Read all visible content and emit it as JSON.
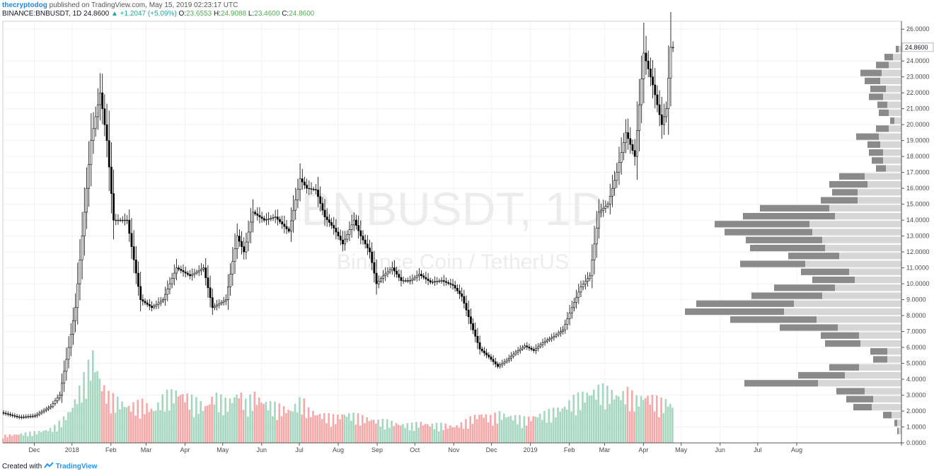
{
  "header": {
    "author": "thecryptodog",
    "published_text": "published on TradingView.com, May 15, 2019 02:23:17 UTC",
    "symbol": "BINANCE:BNBUSDT, 1D",
    "last": "24.8600",
    "change": "▲ +1.2047 (+5.09%)",
    "o_label": "O:",
    "o_value": "23.6553",
    "h_label": "H:",
    "h_value": "24.9088",
    "l_label": "L:",
    "l_value": "23.4600",
    "c_label": "C:",
    "c_value": "24.8600"
  },
  "watermark": {
    "line1": "BNBUSDT, 1D",
    "line2": "Binance Coin / TetherUS"
  },
  "footer": {
    "created_with": "Created with",
    "brand": "TradingView"
  },
  "colors": {
    "up": "#26a69a",
    "down": "#ef5350",
    "candle": "#000000",
    "vol_up": "#a5d6c0",
    "vol_down": "#f4a9a8",
    "vp_dark": "#8a8a8a",
    "vp_light": "#d6d6d6"
  },
  "chart_data": {
    "type": "candlestick",
    "price_axis": {
      "ticks": [
        "26.0000",
        "24.0000",
        "23.0000",
        "22.0000",
        "21.0000",
        "20.0000",
        "19.0000",
        "18.0000",
        "17.0000",
        "16.0000",
        "15.0000",
        "14.0000",
        "13.0000",
        "12.0000",
        "11.0000",
        "10.0000",
        "9.0000",
        "8.0000",
        "7.0000",
        "6.0000",
        "5.0000",
        "4.0000",
        "3.0000",
        "2.0000",
        "1.0000",
        "0.0000"
      ],
      "tick_values": [
        26,
        24,
        23,
        22,
        21,
        20,
        19,
        18,
        17,
        16,
        15,
        14,
        13,
        12,
        11,
        10,
        9,
        8,
        7,
        6,
        5,
        4,
        3,
        2,
        1,
        0
      ],
      "ylim": [
        0,
        26.5
      ],
      "last_price_label": "24.8600",
      "last_price": 24.86
    },
    "time_axis": {
      "labels": [
        "Dec",
        "2018",
        "Feb",
        "Mar",
        "Apr",
        "May",
        "Jun",
        "Jul",
        "Aug",
        "Sep",
        "Oct",
        "Nov",
        "Dec",
        "2019",
        "Feb",
        "Mar",
        "Apr",
        "May",
        "Jun",
        "Jul",
        "Aug"
      ]
    },
    "price_series": [
      [
        0,
        1.9
      ],
      [
        8,
        1.6
      ],
      [
        15,
        1.7
      ],
      [
        22,
        2.3
      ],
      [
        26,
        3.0
      ],
      [
        30,
        6.0
      ],
      [
        33,
        8.5
      ],
      [
        36,
        13
      ],
      [
        40,
        19
      ],
      [
        44,
        22
      ],
      [
        47,
        19
      ],
      [
        50,
        14
      ],
      [
        56,
        14
      ],
      [
        62,
        9
      ],
      [
        67,
        8.5
      ],
      [
        72,
        9
      ],
      [
        78,
        11
      ],
      [
        84,
        10.5
      ],
      [
        90,
        11
      ],
      [
        94,
        8.5
      ],
      [
        100,
        9
      ],
      [
        105,
        13
      ],
      [
        108,
        12
      ],
      [
        112,
        14.5
      ],
      [
        117,
        14
      ],
      [
        122,
        14.2
      ],
      [
        128,
        13.3
      ],
      [
        133,
        16.6
      ],
      [
        136,
        16
      ],
      [
        140,
        15.9
      ],
      [
        144,
        14.2
      ],
      [
        148,
        13.5
      ],
      [
        152,
        12.5
      ],
      [
        157,
        14
      ],
      [
        160,
        13
      ],
      [
        164,
        12
      ],
      [
        167,
        10
      ],
      [
        170,
        10.5
      ],
      [
        174,
        11
      ],
      [
        178,
        10.2
      ],
      [
        182,
        10.2
      ],
      [
        186,
        10.6
      ],
      [
        191,
        10.1
      ],
      [
        196,
        10.2
      ],
      [
        201,
        9.9
      ],
      [
        205,
        9.2
      ],
      [
        209,
        7.5
      ],
      [
        213,
        5.9
      ],
      [
        217,
        5.4
      ],
      [
        221,
        4.8
      ],
      [
        225,
        5.2
      ],
      [
        229,
        5.7
      ],
      [
        233,
        6.1
      ],
      [
        237,
        5.8
      ],
      [
        241,
        6.3
      ],
      [
        246,
        6.7
      ],
      [
        250,
        7.1
      ],
      [
        254,
        8.5
      ],
      [
        258,
        9.8
      ],
      [
        262,
        10.5
      ],
      [
        266,
        14.5
      ],
      [
        270,
        15
      ],
      [
        274,
        17
      ],
      [
        278,
        19.5
      ],
      [
        282,
        18
      ],
      [
        286,
        24.5
      ],
      [
        290,
        22.5
      ],
      [
        294,
        20
      ],
      [
        296,
        21
      ],
      [
        298,
        24.86
      ]
    ],
    "series_x_note": "x = day index from first visible candle",
    "volume_series": [
      [
        0,
        0.4
      ],
      [
        8,
        0.5
      ],
      [
        15,
        0.6
      ],
      [
        22,
        0.8
      ],
      [
        26,
        1.2
      ],
      [
        30,
        1.8
      ],
      [
        33,
        2.6
      ],
      [
        36,
        3.5
      ],
      [
        40,
        4.8
      ],
      [
        44,
        3.2
      ],
      [
        47,
        2.6
      ],
      [
        50,
        2.4
      ],
      [
        56,
        2.0
      ],
      [
        62,
        2.2
      ],
      [
        67,
        1.8
      ],
      [
        72,
        2.6
      ],
      [
        78,
        2.8
      ],
      [
        84,
        2.4
      ],
      [
        90,
        2.0
      ],
      [
        94,
        2.6
      ],
      [
        100,
        2.2
      ],
      [
        105,
        2.8
      ],
      [
        108,
        2.2
      ],
      [
        112,
        2.6
      ],
      [
        117,
        2.2
      ],
      [
        122,
        2.0
      ],
      [
        128,
        1.8
      ],
      [
        133,
        2.4
      ],
      [
        136,
        1.8
      ],
      [
        140,
        1.6
      ],
      [
        144,
        1.5
      ],
      [
        148,
        1.4
      ],
      [
        152,
        1.6
      ],
      [
        157,
        1.5
      ],
      [
        160,
        1.4
      ],
      [
        164,
        1.3
      ],
      [
        167,
        1.2
      ],
      [
        170,
        1.2
      ],
      [
        174,
        1.1
      ],
      [
        178,
        1.0
      ],
      [
        182,
        1.0
      ],
      [
        186,
        1.1
      ],
      [
        191,
        1.0
      ],
      [
        196,
        1.0
      ],
      [
        201,
        0.9
      ],
      [
        205,
        1.1
      ],
      [
        209,
        1.4
      ],
      [
        213,
        1.6
      ],
      [
        217,
        1.4
      ],
      [
        221,
        1.6
      ],
      [
        225,
        1.5
      ],
      [
        229,
        1.4
      ],
      [
        233,
        1.3
      ],
      [
        237,
        1.5
      ],
      [
        241,
        1.6
      ],
      [
        246,
        1.8
      ],
      [
        250,
        2.0
      ],
      [
        254,
        2.4
      ],
      [
        258,
        2.6
      ],
      [
        262,
        2.8
      ],
      [
        266,
        3.0
      ],
      [
        270,
        2.8
      ],
      [
        274,
        2.6
      ],
      [
        278,
        2.8
      ],
      [
        282,
        2.4
      ],
      [
        286,
        2.6
      ],
      [
        290,
        2.4
      ],
      [
        294,
        2.2
      ],
      [
        296,
        2.3
      ],
      [
        298,
        2.0
      ]
    ],
    "volume_profile": [
      {
        "price": 24.5,
        "total": 0.4,
        "part": 0.2
      },
      {
        "price": 24.0,
        "total": 1.2,
        "part": 0.6
      },
      {
        "price": 23.5,
        "total": 1.8,
        "part": 0.9
      },
      {
        "price": 23.0,
        "total": 2.9,
        "part": 1.5
      },
      {
        "price": 22.5,
        "total": 2.6,
        "part": 1.1
      },
      {
        "price": 22.0,
        "total": 2.2,
        "part": 1.1
      },
      {
        "price": 21.5,
        "total": 2.3,
        "part": 1.0
      },
      {
        "price": 21.0,
        "total": 1.7,
        "part": 0.7
      },
      {
        "price": 20.5,
        "total": 1.6,
        "part": 0.7
      },
      {
        "price": 20.0,
        "total": 0.8,
        "part": 0.3
      },
      {
        "price": 19.5,
        "total": 1.8,
        "part": 0.9
      },
      {
        "price": 19.0,
        "total": 3.2,
        "part": 1.6
      },
      {
        "price": 18.5,
        "total": 2.4,
        "part": 0.9
      },
      {
        "price": 18.0,
        "total": 2.3,
        "part": 1.0
      },
      {
        "price": 17.5,
        "total": 2.1,
        "part": 0.8
      },
      {
        "price": 17.0,
        "total": 1.8,
        "part": 0.7
      },
      {
        "price": 16.5,
        "total": 4.4,
        "part": 1.8
      },
      {
        "price": 16.0,
        "total": 5.1,
        "part": 2.7
      },
      {
        "price": 15.5,
        "total": 4.9,
        "part": 1.8
      },
      {
        "price": 15.0,
        "total": 5.7,
        "part": 2.6
      },
      {
        "price": 14.5,
        "total": 10.0,
        "part": 4.9
      },
      {
        "price": 14.0,
        "total": 11.2,
        "part": 6.5
      },
      {
        "price": 13.5,
        "total": 13.2,
        "part": 6.7
      },
      {
        "price": 13.0,
        "total": 12.5,
        "part": 6.2
      },
      {
        "price": 12.5,
        "total": 11.0,
        "part": 5.4
      },
      {
        "price": 12.0,
        "total": 10.7,
        "part": 5.3
      },
      {
        "price": 11.5,
        "total": 8.0,
        "part": 3.6
      },
      {
        "price": 11.0,
        "total": 11.4,
        "part": 4.6
      },
      {
        "price": 10.5,
        "total": 7.1,
        "part": 3.4
      },
      {
        "price": 10.0,
        "total": 6.3,
        "part": 3.0
      },
      {
        "price": 9.5,
        "total": 9.0,
        "part": 4.3
      },
      {
        "price": 9.0,
        "total": 10.6,
        "part": 5.0
      },
      {
        "price": 8.5,
        "total": 14.5,
        "part": 6.9
      },
      {
        "price": 8.0,
        "total": 15.3,
        "part": 7.0
      },
      {
        "price": 7.5,
        "total": 12.1,
        "part": 6.1
      },
      {
        "price": 7.0,
        "total": 8.6,
        "part": 4.1
      },
      {
        "price": 6.5,
        "total": 5.7,
        "part": 2.7
      },
      {
        "price": 6.0,
        "total": 5.4,
        "part": 2.5
      },
      {
        "price": 5.5,
        "total": 2.2,
        "part": 1.2
      },
      {
        "price": 5.0,
        "total": 2.0,
        "part": 1.0
      },
      {
        "price": 4.5,
        "total": 5.1,
        "part": 2.1
      },
      {
        "price": 4.0,
        "total": 7.3,
        "part": 3.3
      },
      {
        "price": 3.5,
        "total": 11.1,
        "part": 5.2
      },
      {
        "price": 3.0,
        "total": 4.6,
        "part": 2.0
      },
      {
        "price": 2.5,
        "total": 3.9,
        "part": 1.9
      },
      {
        "price": 2.0,
        "total": 3.4,
        "part": 1.3
      },
      {
        "price": 1.5,
        "total": 1.3,
        "part": 0.6
      },
      {
        "price": 1.0,
        "total": 0.5,
        "part": 0.2
      },
      {
        "price": 0.5,
        "total": 0.3,
        "part": 0.1
      }
    ],
    "ylabel": "",
    "xlabel": "",
    "grid": true
  }
}
